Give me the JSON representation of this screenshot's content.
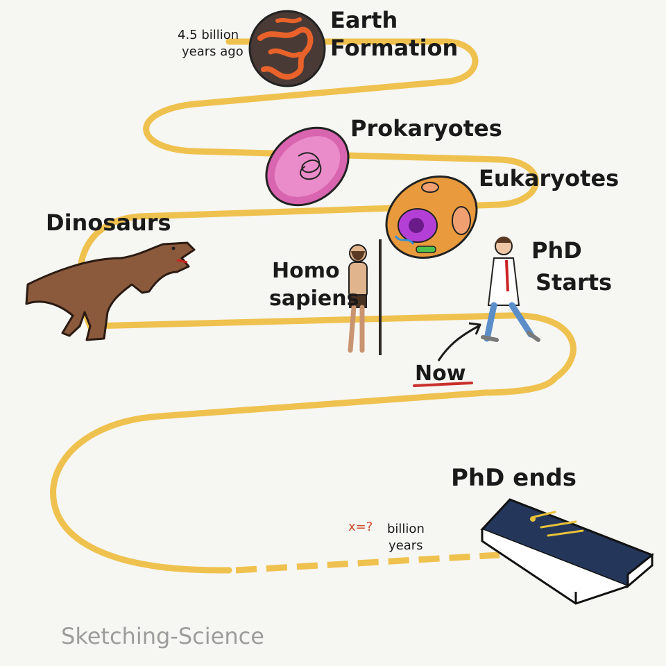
{
  "milestones": {
    "start_note_line1": "4.5 billion",
    "start_note_line2": "years ago",
    "earth_line1": "Earth",
    "earth_line2": "Formation",
    "prokaryotes": "Prokaryotes",
    "eukaryotes": "Eukaryotes",
    "dinosaurs": "Dinosaurs",
    "homo_line1": "Homo",
    "homo_line2": "sapiens",
    "phd_starts_line1": "PhD",
    "phd_starts_line2": "Starts",
    "now": "Now",
    "phd_ends": "PhD ends"
  },
  "end_note": {
    "variable": "x=?",
    "line1": "billion",
    "line2": "years"
  },
  "signature": "Sketching-Science",
  "colors": {
    "path": "#efc14e",
    "now_underline": "#c9302c",
    "x_red": "#d04a2a",
    "book": "#24375a"
  }
}
